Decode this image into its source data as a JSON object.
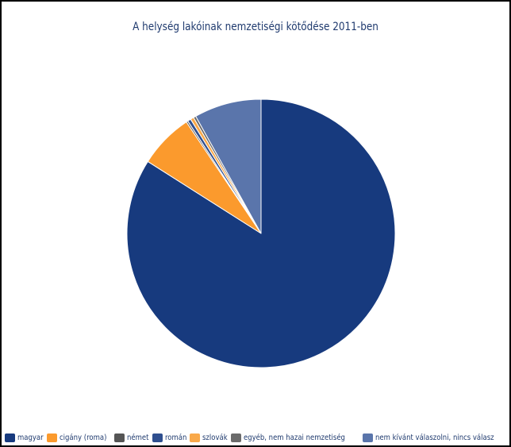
{
  "chart_data": {
    "type": "pie",
    "title": "A helység lakóinak nemzetiségi kötődése 2011-ben",
    "legend_position": "bottom",
    "series": [
      {
        "name": "magyar",
        "value": 84.0,
        "color": "#173a7e"
      },
      {
        "name": "cigány (roma)",
        "value": 6.6,
        "color": "#fb9a2d"
      },
      {
        "name": "német",
        "value": 0.2,
        "color": "#555555"
      },
      {
        "name": "román",
        "value": 0.4,
        "color": "#2f4f8f"
      },
      {
        "name": "szlovák",
        "value": 0.4,
        "color": "#f9a94a"
      },
      {
        "name": "egyéb, nem hazai nemzetiség",
        "value": 0.3,
        "color": "#6b6b6b"
      },
      {
        "name": "nem kívánt válaszolni, nincs válasz",
        "value": 8.1,
        "color": "#5a75ab"
      }
    ]
  }
}
